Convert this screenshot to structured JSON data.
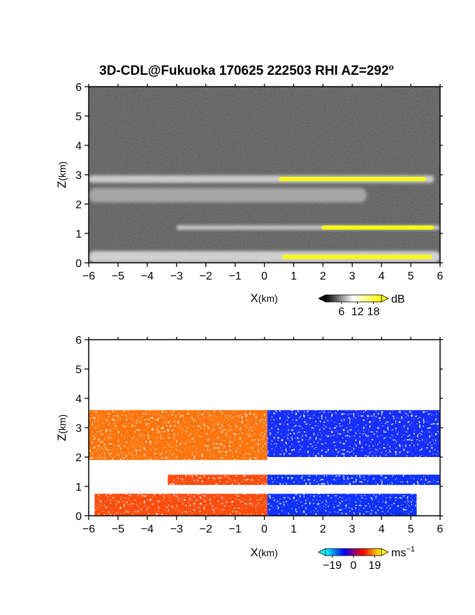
{
  "title": "3D-CDL@Fukuoka 170625 222503 RHI AZ=292",
  "title_sup": "o",
  "chart_data": [
    {
      "type": "heatmap",
      "variable": "backscatter intensity",
      "xlabel_main": "X",
      "xlabel_unit": "(km)",
      "ylabel_main": "Z",
      "ylabel_unit": "(km)",
      "xlim": [
        -6,
        6
      ],
      "ylim": [
        0,
        6
      ],
      "xticks": [
        -6,
        -5,
        -4,
        -3,
        -2,
        -1,
        0,
        1,
        2,
        3,
        4,
        5,
        6
      ],
      "yticks": [
        0,
        1,
        2,
        3,
        4,
        5,
        6
      ],
      "colorbar": {
        "unit": "dB",
        "ticks": [
          6,
          12,
          18
        ],
        "min": 0,
        "max": 21,
        "colors": [
          "#000000",
          "#ffffff",
          "#ffff00"
        ]
      },
      "features": [
        {
          "name": "upper aerosol layer",
          "x_range": [
            -6,
            5.8
          ],
          "z_center": 2.85,
          "thickness_km": 0.25,
          "max_dB": 18
        },
        {
          "name": "middle layer",
          "x_range": [
            -6,
            3.5
          ],
          "z_center": 2.3,
          "thickness_km": 0.5,
          "max_dB": 12
        },
        {
          "name": "lower layer",
          "x_range": [
            -3,
            6
          ],
          "z_center": 1.2,
          "thickness_km": 0.15,
          "max_dB": 18
        },
        {
          "name": "boundary layer",
          "x_range": [
            -6,
            6
          ],
          "z_center": 0.2,
          "thickness_km": 0.4,
          "max_dB": 19
        }
      ]
    },
    {
      "type": "heatmap",
      "variable": "radial velocity",
      "xlabel_main": "X",
      "xlabel_unit": "(km)",
      "ylabel_main": "Z",
      "ylabel_unit": "(km)",
      "xlim": [
        -6,
        6
      ],
      "ylim": [
        0,
        6
      ],
      "xticks": [
        -6,
        -5,
        -4,
        -3,
        -2,
        -1,
        0,
        1,
        2,
        3,
        4,
        5,
        6
      ],
      "yticks": [
        0,
        1,
        2,
        3,
        4,
        5,
        6
      ],
      "colorbar": {
        "unit": "ms",
        "unit_sup": "−1",
        "ticks": [
          "−19",
          "0",
          "19"
        ],
        "min": -25,
        "max": 25,
        "colors": [
          "#00ffff",
          "#0000ff",
          "#ff0000",
          "#ffff00"
        ]
      },
      "regions": [
        {
          "name": "upper layer west",
          "x_range": [
            -6,
            0.1
          ],
          "z_range": [
            1.9,
            3.6
          ],
          "velocity_ms": 12
        },
        {
          "name": "upper layer east",
          "x_range": [
            0.1,
            6
          ],
          "z_range": [
            2.0,
            3.6
          ],
          "velocity_ms": -14
        },
        {
          "name": "lower layer west",
          "x_range": [
            -3.3,
            0.1
          ],
          "z_range": [
            1.05,
            1.4
          ],
          "velocity_ms": 6
        },
        {
          "name": "lower layer east",
          "x_range": [
            0.1,
            6
          ],
          "z_range": [
            1.05,
            1.4
          ],
          "velocity_ms": -16
        },
        {
          "name": "boundary layer west",
          "x_range": [
            -5.8,
            0.1
          ],
          "z_range": [
            0,
            0.75
          ],
          "velocity_ms": 6
        },
        {
          "name": "boundary layer east",
          "x_range": [
            0.1,
            5.2
          ],
          "z_range": [
            0,
            0.75
          ],
          "velocity_ms": -16
        }
      ]
    }
  ]
}
